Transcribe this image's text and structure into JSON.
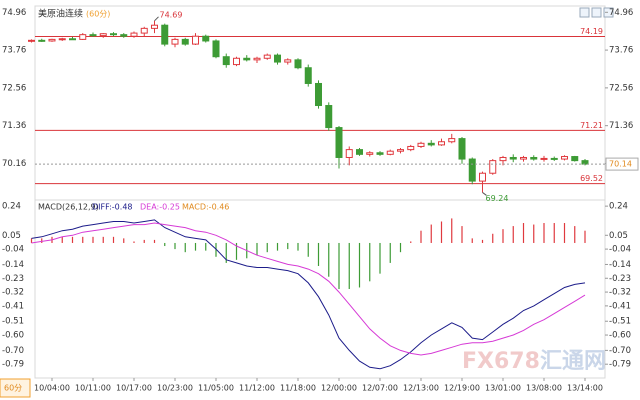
{
  "chart_data": {
    "type": "candlestick",
    "title": "美原油连续",
    "period": "(60分)",
    "period_button": "60分",
    "watermark": [
      "FX678",
      "汇通网"
    ],
    "up_color": "#e0393e",
    "down_color": "#3d9b35",
    "level_color": "#d9343a",
    "categories": [
      null,
      null,
      "10/04:00",
      null,
      null,
      null,
      "10/11:00",
      null,
      null,
      null,
      "10/17:00",
      null,
      null,
      null,
      "10/23:00",
      null,
      null,
      null,
      "11/05:00",
      null,
      null,
      null,
      "11/12:00",
      null,
      null,
      null,
      "11/18:00",
      null,
      null,
      null,
      "12/00:00",
      null,
      null,
      null,
      "12/07:00",
      null,
      null,
      null,
      "12/13:00",
      null,
      null,
      null,
      "12/19:00",
      null,
      null,
      null,
      "13/01:00",
      null,
      null,
      null,
      "13/08:00",
      null,
      null,
      null,
      "13/14:00"
    ],
    "candles": [
      [
        74.05,
        74.1,
        74.0,
        74.07
      ],
      [
        74.07,
        74.12,
        74.02,
        74.05
      ],
      [
        74.05,
        74.12,
        74.02,
        74.1
      ],
      [
        74.1,
        74.15,
        74.05,
        74.12
      ],
      [
        74.12,
        74.18,
        74.08,
        74.1
      ],
      [
        74.1,
        74.3,
        74.08,
        74.25
      ],
      [
        74.25,
        74.32,
        74.18,
        74.22
      ],
      [
        74.22,
        74.3,
        74.15,
        74.28
      ],
      [
        74.28,
        74.33,
        74.2,
        74.25
      ],
      [
        74.25,
        74.3,
        74.15,
        74.2
      ],
      [
        74.2,
        74.35,
        74.15,
        74.3
      ],
      [
        74.3,
        74.5,
        74.2,
        74.45
      ],
      [
        74.45,
        74.69,
        74.3,
        74.55
      ],
      [
        74.55,
        74.6,
        73.88,
        73.95
      ],
      [
        73.95,
        74.15,
        73.85,
        74.1
      ],
      [
        74.1,
        74.15,
        73.9,
        73.95
      ],
      [
        73.95,
        74.3,
        73.92,
        74.2
      ],
      [
        74.2,
        74.25,
        74.0,
        74.05
      ],
      [
        74.05,
        74.1,
        73.5,
        73.55
      ],
      [
        73.55,
        73.65,
        73.2,
        73.3
      ],
      [
        73.3,
        73.55,
        73.25,
        73.5
      ],
      [
        73.5,
        73.6,
        73.4,
        73.45
      ],
      [
        73.45,
        73.55,
        73.35,
        73.5
      ],
      [
        73.5,
        73.65,
        73.45,
        73.6
      ],
      [
        73.6,
        73.65,
        73.3,
        73.38
      ],
      [
        73.38,
        73.5,
        73.3,
        73.45
      ],
      [
        73.45,
        73.5,
        73.15,
        73.2
      ],
      [
        73.2,
        73.3,
        72.6,
        72.7
      ],
      [
        72.7,
        72.8,
        71.9,
        72.0
      ],
      [
        72.0,
        72.1,
        71.2,
        71.3
      ],
      [
        71.3,
        71.35,
        70.0,
        70.35
      ],
      [
        70.35,
        70.7,
        70.1,
        70.6
      ],
      [
        70.6,
        70.65,
        70.4,
        70.45
      ],
      [
        70.45,
        70.55,
        70.38,
        70.5
      ],
      [
        70.5,
        70.55,
        70.4,
        70.45
      ],
      [
        70.45,
        70.6,
        70.42,
        70.55
      ],
      [
        70.55,
        70.65,
        70.48,
        70.6
      ],
      [
        70.6,
        70.75,
        70.55,
        70.7
      ],
      [
        70.7,
        70.85,
        70.65,
        70.8
      ],
      [
        70.8,
        70.9,
        70.7,
        70.75
      ],
      [
        70.75,
        70.95,
        70.72,
        70.85
      ],
      [
        70.85,
        71.1,
        70.8,
        70.95
      ],
      [
        70.95,
        71.0,
        70.15,
        70.3
      ],
      [
        70.3,
        70.35,
        69.5,
        69.6
      ],
      [
        69.6,
        69.9,
        69.24,
        69.85
      ],
      [
        69.85,
        70.3,
        69.8,
        70.25
      ],
      [
        70.25,
        70.4,
        70.1,
        70.35
      ],
      [
        70.35,
        70.45,
        70.2,
        70.3
      ],
      [
        70.3,
        70.4,
        70.22,
        70.35
      ],
      [
        70.35,
        70.42,
        70.25,
        70.3
      ],
      [
        70.3,
        70.4,
        70.22,
        70.32
      ],
      [
        70.32,
        70.38,
        70.24,
        70.3
      ],
      [
        70.3,
        70.42,
        70.26,
        70.38
      ],
      [
        70.38,
        70.4,
        70.22,
        70.25
      ],
      [
        70.25,
        70.3,
        70.1,
        70.14
      ]
    ],
    "ylim": [
      69.0,
      75.16
    ],
    "yticks": [
      74.96,
      73.76,
      72.56,
      71.36,
      70.16
    ],
    "levels": [
      74.19,
      71.21,
      69.52
    ],
    "macd": {
      "title": "MACD(26,12,9)",
      "ylim": [
        -0.88,
        0.28
      ],
      "yticks": [
        0.24,
        0.05,
        -0.04,
        -0.14,
        -0.23,
        -0.32,
        -0.41,
        -0.51,
        {
          "value": -0.6,
          "label": "-0.60"
        },
        {
          "value": -0.7,
          "label": "-0.70"
        },
        -0.79
      ],
      "series": [
        {
          "label": "DIFF:-0.48",
          "color": "#1c1c8a",
          "values": [
            0.03,
            0.04,
            0.06,
            0.08,
            0.09,
            0.11,
            0.12,
            0.13,
            0.14,
            0.14,
            0.13,
            0.14,
            0.15,
            0.1,
            0.07,
            0.04,
            0.03,
            0.02,
            -0.04,
            -0.11,
            -0.13,
            -0.15,
            -0.16,
            -0.16,
            -0.17,
            -0.18,
            -0.2,
            -0.26,
            -0.35,
            -0.47,
            -0.62,
            -0.7,
            -0.77,
            -0.81,
            -0.82,
            -0.8,
            -0.76,
            -0.71,
            -0.65,
            -0.6,
            -0.56,
            -0.52,
            -0.55,
            -0.62,
            -0.63,
            -0.58,
            -0.53,
            -0.49,
            -0.44,
            -0.41,
            -0.37,
            -0.33,
            -0.29,
            -0.27,
            -0.26
          ]
        },
        {
          "label": "DEA:-0.25",
          "color": "#d63ad6",
          "values": [
            0.0,
            0.01,
            0.02,
            0.04,
            0.05,
            0.07,
            0.08,
            0.09,
            0.1,
            0.11,
            0.12,
            0.12,
            0.13,
            0.12,
            0.11,
            0.1,
            0.08,
            0.07,
            0.05,
            0.02,
            -0.02,
            -0.05,
            -0.08,
            -0.1,
            -0.12,
            -0.14,
            -0.15,
            -0.17,
            -0.2,
            -0.25,
            -0.32,
            -0.4,
            -0.48,
            -0.56,
            -0.62,
            -0.67,
            -0.7,
            -0.72,
            -0.73,
            -0.72,
            -0.7,
            -0.68,
            -0.66,
            -0.65,
            -0.65,
            -0.64,
            -0.62,
            -0.6,
            -0.57,
            -0.53,
            -0.5,
            -0.46,
            -0.42,
            -0.38,
            -0.34
          ]
        }
      ],
      "histogram": {
        "label": "MACD:-0.46",
        "color": "#e08a1e",
        "values": [
          0.03,
          0.03,
          0.04,
          0.04,
          0.04,
          0.04,
          0.04,
          0.04,
          0.04,
          0.03,
          0.01,
          0.02,
          0.02,
          -0.02,
          -0.04,
          -0.06,
          -0.05,
          -0.05,
          -0.09,
          -0.13,
          -0.11,
          -0.1,
          -0.08,
          -0.06,
          -0.05,
          -0.04,
          -0.05,
          -0.09,
          -0.15,
          -0.22,
          -0.3,
          -0.3,
          -0.29,
          -0.25,
          -0.2,
          -0.13,
          -0.06,
          0.01,
          0.08,
          0.12,
          0.14,
          0.16,
          0.11,
          0.03,
          0.02,
          0.06,
          0.09,
          0.11,
          0.13,
          0.12,
          0.13,
          0.13,
          0.13,
          0.11,
          0.08
        ]
      }
    }
  }
}
